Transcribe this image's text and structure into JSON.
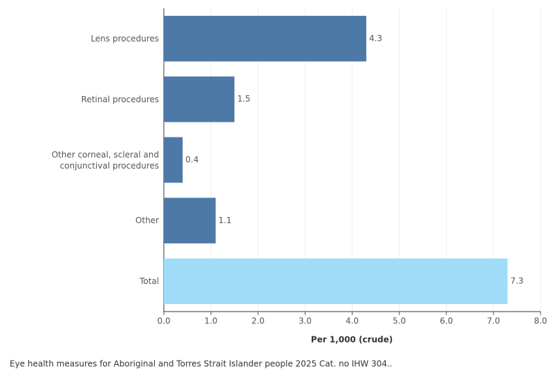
{
  "chart_data": {
    "type": "hbar",
    "categories": [
      "Lens procedures",
      "Retinal procedures",
      "Other corneal, scleral and conjunctival procedures",
      "Other",
      "Total"
    ],
    "values": [
      4.3,
      1.5,
      0.4,
      1.1,
      7.3
    ],
    "colors": [
      "#4d79a7",
      "#4d79a7",
      "#4d79a7",
      "#4d79a7",
      "#a0dcf8"
    ],
    "xlim": [
      0,
      8
    ],
    "xticks": [
      {
        "value": 0,
        "label": "0.0"
      },
      {
        "value": 1,
        "label": "1.0"
      },
      {
        "value": 2,
        "label": "2.0"
      },
      {
        "value": 3,
        "label": "3.0"
      },
      {
        "value": 4,
        "label": "4.0"
      },
      {
        "value": 5,
        "label": "5.0"
      },
      {
        "value": 6,
        "label": "6.0"
      },
      {
        "value": 7,
        "label": "7.0"
      },
      {
        "value": 8,
        "label": "8.0"
      }
    ],
    "xlabel": "Per 1,000 (crude)",
    "grid": true,
    "caption": "Eye health measures for Aboriginal and Torres Strait Islander people 2025 Cat. no IHW 304.."
  }
}
